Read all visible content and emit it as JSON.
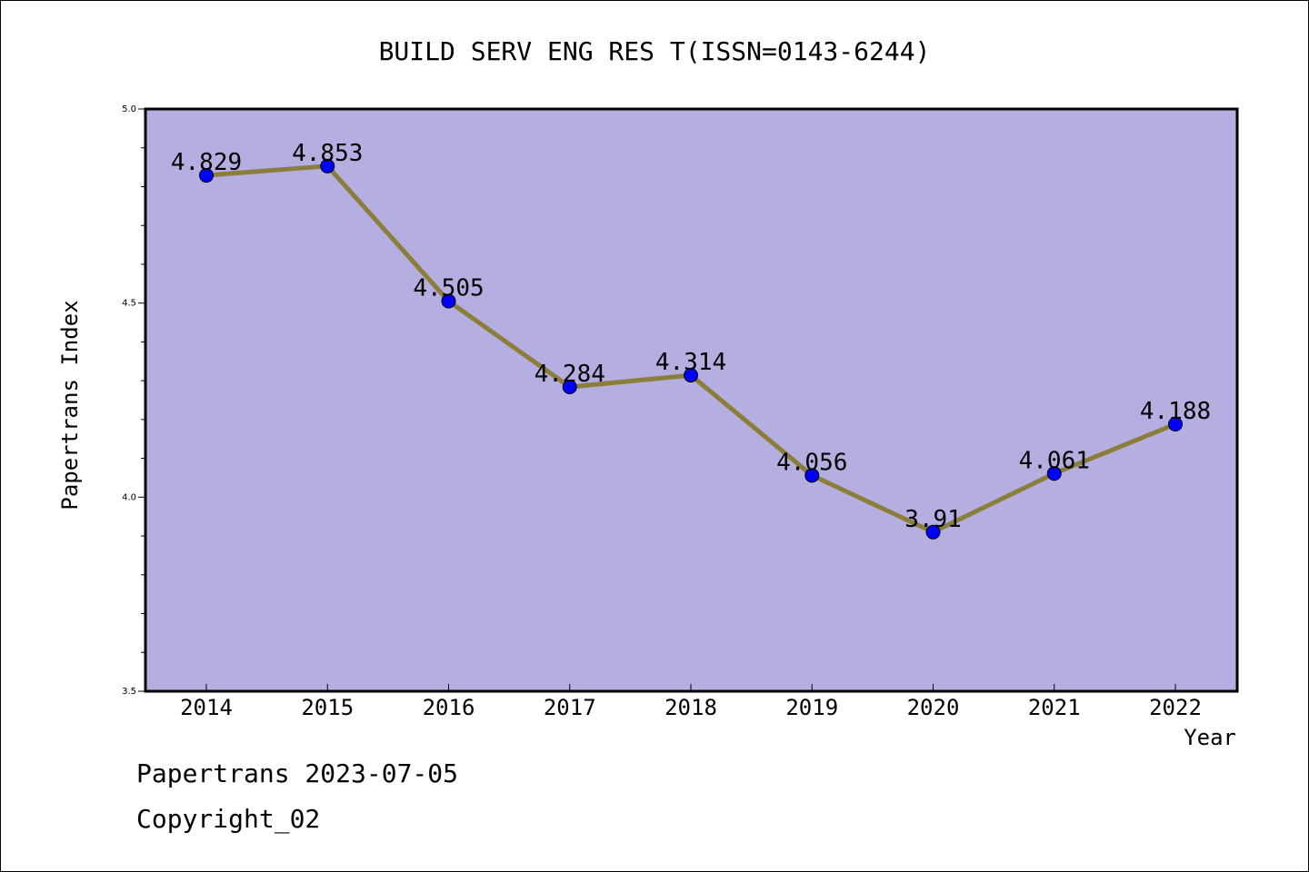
{
  "chart_data": {
    "type": "line",
    "title": "BUILD SERV ENG RES T(ISSN=0143-6244)",
    "xlabel": "Year",
    "ylabel": "Papertrans Index",
    "categories": [
      "2014",
      "2015",
      "2016",
      "2017",
      "2018",
      "2019",
      "2020",
      "2021",
      "2022"
    ],
    "values": [
      4.829,
      4.853,
      4.505,
      4.284,
      4.314,
      4.056,
      3.91,
      4.061,
      4.188
    ],
    "data_labels": [
      "4.829",
      "4.853",
      "4.505",
      "4.284",
      "4.314",
      "4.056",
      "3.91",
      "4.061",
      "4.188"
    ],
    "ylim": [
      3.5,
      5.0
    ],
    "y_ticks": [
      "3.5",
      "4.0",
      "4.5",
      "5.0"
    ],
    "grid": false,
    "legend": "none",
    "colors": {
      "plot_bg": "#b4aee1",
      "line": "#8b7d3a",
      "marker": "#0000ff"
    }
  },
  "footer": {
    "line1": "Papertrans 2023-07-05",
    "line2": "Copyright_02"
  }
}
